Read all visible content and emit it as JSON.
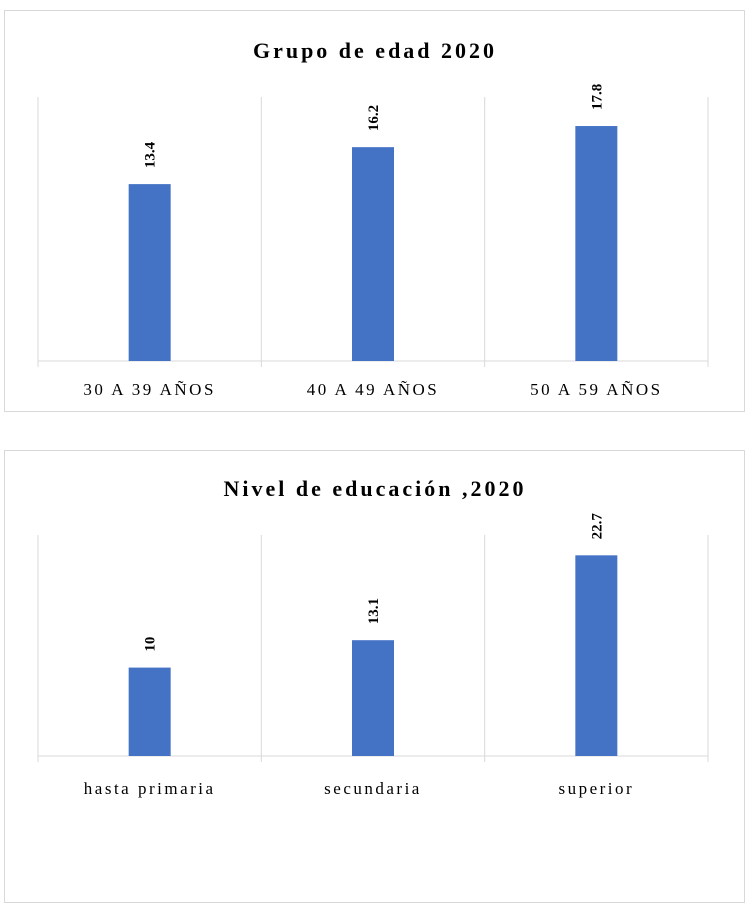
{
  "chart_data": [
    {
      "type": "bar",
      "title": "Grupo de edad 2020",
      "categories": [
        "30 A 39 AÑOS",
        "40 A 49 AÑOS",
        "50 A 59 AÑOS"
      ],
      "values": [
        13.4,
        16.2,
        17.8
      ],
      "data_labels": [
        "13.4",
        "16.2",
        "17.8"
      ],
      "ylim": [
        0,
        20
      ],
      "grid": "vertical category separators",
      "legend": "none",
      "bar_color": "#4472c4"
    },
    {
      "type": "bar",
      "title": "Nivel de educación ,2020",
      "categories": [
        "hasta primaria",
        "secundaria",
        "superior"
      ],
      "values": [
        10,
        13.1,
        22.7
      ],
      "data_labels": [
        "10",
        "13.1",
        "22.7"
      ],
      "ylim": [
        0,
        25
      ],
      "grid": "vertical category separators",
      "legend": "none",
      "bar_color": "#4472c4"
    }
  ]
}
